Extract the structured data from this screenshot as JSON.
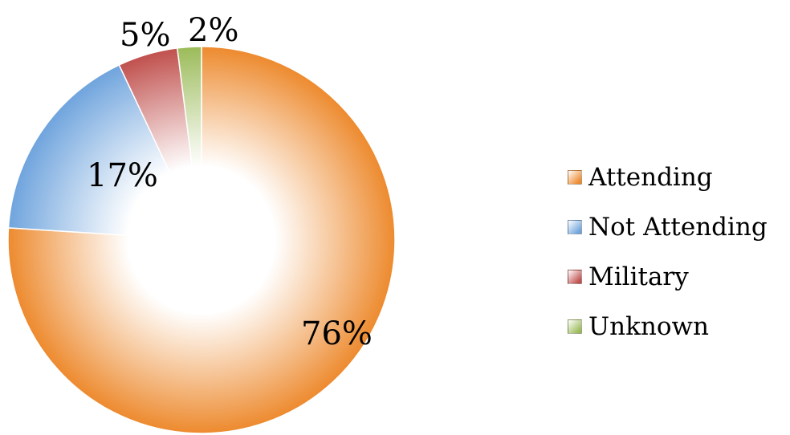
{
  "chart_data": {
    "type": "pie",
    "categories": [
      "Attending",
      "Not Attending",
      "Military",
      "Unknown"
    ],
    "values": [
      76,
      17,
      5,
      2
    ],
    "data_labels": [
      "76%",
      "17%",
      "5%",
      "2%"
    ],
    "colors": [
      "#ED8A2E",
      "#6FA4DD",
      "#C0504D",
      "#9BBB59"
    ],
    "legend_position": "right",
    "title": ""
  }
}
